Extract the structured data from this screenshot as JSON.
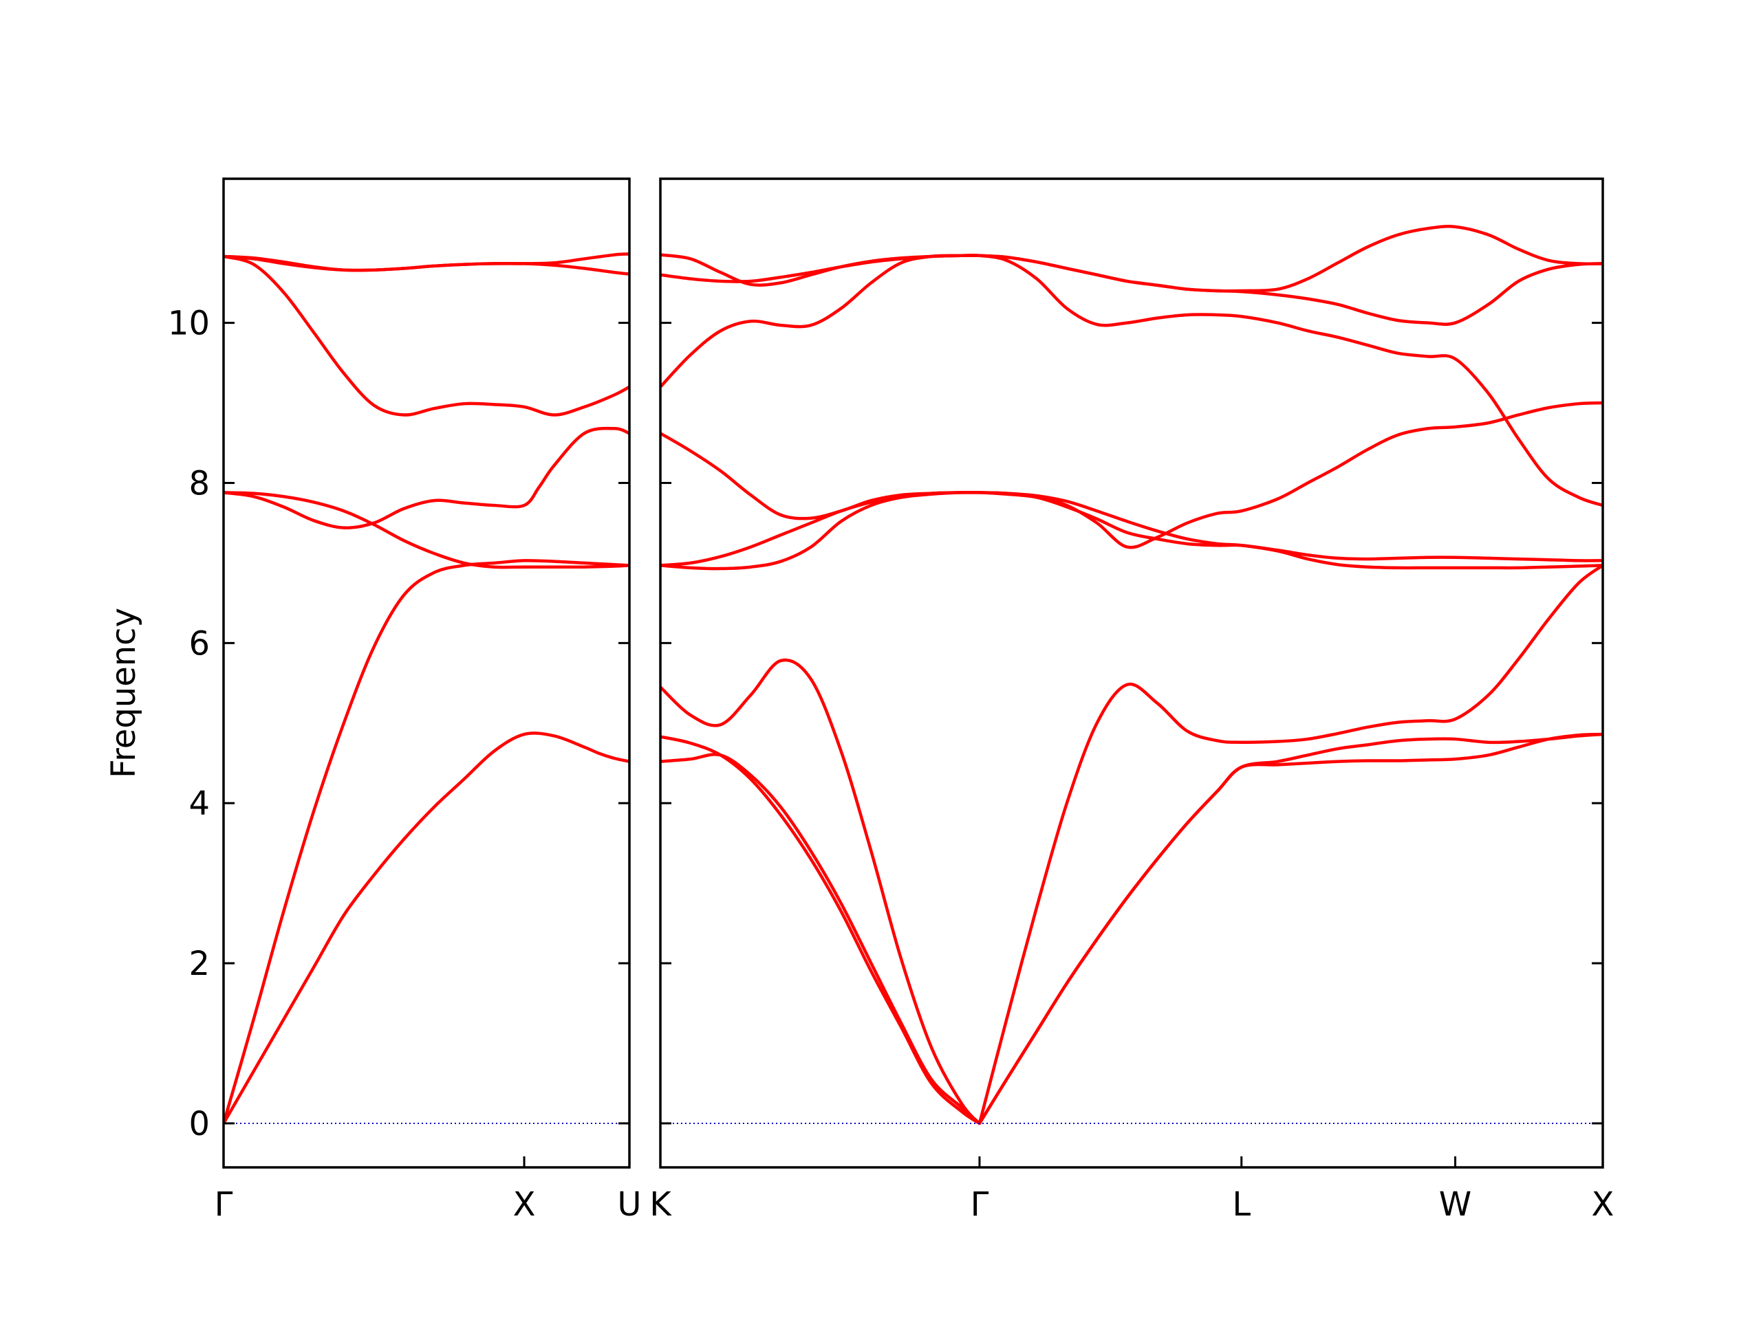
{
  "chart_data": {
    "type": "line",
    "ylabel": "Frequency",
    "ylim": [
      -0.55,
      11.8
    ],
    "yticks": [
      0,
      2,
      4,
      6,
      8,
      10
    ],
    "ytick_labels": [
      "0",
      "2",
      "4",
      "6",
      "8",
      "10"
    ],
    "grid": false,
    "legend": "none",
    "line_color": "#ff0000",
    "zero_line_color": "#0000cc",
    "panels": [
      {
        "name": "panel-gamma-x-u",
        "xlim": [
          0,
          1.35
        ],
        "xticks": [
          0,
          1.0,
          1.35
        ],
        "xtick_labels": [
          "Γ",
          "X",
          "U"
        ],
        "bands": [
          {
            "x": [
              0,
              0.1,
              0.2,
              0.3,
              0.4,
              0.5,
              0.6,
              0.7,
              0.8,
              0.9,
              1.0,
              1.1,
              1.2,
              1.25,
              1.3,
              1.35
            ],
            "y": [
              0,
              0.65,
              1.3,
              1.95,
              2.6,
              3.1,
              3.55,
              3.95,
              4.3,
              4.65,
              4.86,
              4.84,
              4.7,
              4.62,
              4.56,
              4.52
            ]
          },
          {
            "x": [
              0,
              0.1,
              0.2,
              0.3,
              0.4,
              0.5,
              0.6,
              0.7,
              0.8,
              0.9,
              1.0,
              1.1,
              1.2,
              1.3,
              1.35
            ],
            "y": [
              0,
              1.3,
              2.65,
              3.9,
              5.0,
              5.95,
              6.6,
              6.88,
              6.97,
              7.0,
              7.03,
              7.02,
              7.0,
              6.98,
              6.97
            ]
          },
          {
            "x": [
              0,
              0.1,
              0.2,
              0.3,
              0.4,
              0.5,
              0.6,
              0.7,
              0.8,
              0.9,
              1.0,
              1.1,
              1.2,
              1.3,
              1.35
            ],
            "y": [
              7.88,
              7.87,
              7.83,
              7.76,
              7.65,
              7.48,
              7.28,
              7.12,
              7.0,
              6.95,
              6.95,
              6.95,
              6.95,
              6.96,
              6.97
            ]
          },
          {
            "x": [
              0,
              0.1,
              0.2,
              0.3,
              0.4,
              0.5,
              0.6,
              0.7,
              0.8,
              0.9,
              1.0,
              1.05,
              1.1,
              1.2,
              1.3,
              1.35
            ],
            "y": [
              7.88,
              7.83,
              7.7,
              7.53,
              7.44,
              7.5,
              7.68,
              7.78,
              7.75,
              7.72,
              7.72,
              7.95,
              8.22,
              8.62,
              8.68,
              8.62
            ]
          },
          {
            "x": [
              0,
              0.1,
              0.2,
              0.3,
              0.4,
              0.5,
              0.6,
              0.7,
              0.8,
              0.9,
              1.0,
              1.1,
              1.2,
              1.3,
              1.35
            ],
            "y": [
              10.83,
              10.73,
              10.38,
              9.88,
              9.37,
              8.97,
              8.85,
              8.93,
              8.99,
              8.98,
              8.95,
              8.85,
              8.95,
              9.1,
              9.2
            ]
          },
          {
            "x": [
              0,
              0.1,
              0.2,
              0.3,
              0.4,
              0.5,
              0.6,
              0.7,
              0.8,
              0.9,
              1.0,
              1.1,
              1.2,
              1.3,
              1.35
            ],
            "y": [
              10.83,
              10.8,
              10.74,
              10.69,
              10.66,
              10.66,
              10.68,
              10.71,
              10.73,
              10.74,
              10.74,
              10.75,
              10.8,
              10.85,
              10.86
            ]
          },
          {
            "x": [
              0,
              0.1,
              0.2,
              0.3,
              0.4,
              0.5,
              0.6,
              0.7,
              0.8,
              0.9,
              1.0,
              1.1,
              1.2,
              1.3,
              1.35
            ],
            "y": [
              10.83,
              10.81,
              10.76,
              10.7,
              10.66,
              10.66,
              10.68,
              10.71,
              10.73,
              10.74,
              10.74,
              10.72,
              10.68,
              10.63,
              10.61
            ]
          },
          {
            "x": [
              0,
              0.1,
              0.2,
              0.3,
              0.4,
              0.5,
              0.6,
              0.7,
              0.8,
              0.9,
              1.0,
              1.1,
              1.2,
              1.3,
              1.35
            ],
            "y": [
              0,
              0,
              0,
              0,
              0,
              0,
              0,
              0,
              0,
              0,
              0,
              0,
              0,
              0,
              0
            ],
            "style": "zero-line"
          }
        ]
      },
      {
        "name": "panel-k-gamma-l-w-x",
        "xlim": [
          0,
          3.13
        ],
        "xticks": [
          0,
          1.06,
          1.93,
          2.64,
          3.13
        ],
        "xtick_labels": [
          "K",
          "Γ",
          "L",
          "W",
          "X"
        ],
        "bands": [
          {
            "x": [
              0,
              0.1,
              0.2,
              0.3,
              0.4,
              0.5,
              0.6,
              0.7,
              0.8,
              0.9,
              1.0,
              1.06,
              1.15,
              1.25,
              1.35,
              1.45,
              1.55,
              1.65,
              1.75,
              1.85,
              1.93,
              2.05,
              2.15,
              2.25,
              2.35,
              2.45,
              2.55,
              2.64,
              2.75,
              2.85,
              2.95,
              3.05,
              3.13
            ],
            "y": [
              4.52,
              4.55,
              4.6,
              4.35,
              3.95,
              3.4,
              2.75,
              2.0,
              1.25,
              0.55,
              0.2,
              0,
              0.55,
              1.15,
              1.75,
              2.3,
              2.82,
              3.3,
              3.75,
              4.15,
              4.45,
              4.48,
              4.5,
              4.52,
              4.53,
              4.53,
              4.54,
              4.55,
              4.6,
              4.7,
              4.8,
              4.85,
              4.86
            ]
          },
          {
            "x": [
              0,
              0.1,
              0.2,
              0.3,
              0.4,
              0.5,
              0.6,
              0.7,
              0.8,
              0.9,
              1.0,
              1.06,
              1.15,
              1.25,
              1.35,
              1.45,
              1.55,
              1.65,
              1.75,
              1.85,
              1.93,
              2.05,
              2.15,
              2.25,
              2.35,
              2.45,
              2.55,
              2.64,
              2.75,
              2.85,
              2.95,
              3.05,
              3.13
            ],
            "y": [
              4.83,
              4.75,
              4.6,
              4.3,
              3.85,
              3.3,
              2.65,
              1.9,
              1.2,
              0.5,
              0.15,
              0,
              0.55,
              1.15,
              1.75,
              2.3,
              2.82,
              3.3,
              3.75,
              4.15,
              4.45,
              4.52,
              4.6,
              4.68,
              4.73,
              4.78,
              4.8,
              4.8,
              4.76,
              4.77,
              4.8,
              4.84,
              4.86
            ]
          },
          {
            "x": [
              0,
              0.1,
              0.2,
              0.3,
              0.4,
              0.5,
              0.6,
              0.7,
              0.8,
              0.9,
              1.0,
              1.06,
              1.15,
              1.25,
              1.35,
              1.45,
              1.55,
              1.65,
              1.75,
              1.85,
              1.93,
              2.05,
              2.15,
              2.25,
              2.35,
              2.45,
              2.55,
              2.64,
              2.75,
              2.85,
              2.95,
              3.05,
              3.13
            ],
            "y": [
              5.45,
              5.1,
              4.98,
              5.35,
              5.78,
              5.55,
              4.65,
              3.4,
              2.05,
              0.95,
              0.25,
              0,
              1.3,
              2.7,
              4.0,
              5.0,
              5.48,
              5.25,
              4.9,
              4.78,
              4.76,
              4.77,
              4.8,
              4.87,
              4.95,
              5.01,
              5.03,
              5.05,
              5.35,
              5.8,
              6.3,
              6.75,
              6.97
            ]
          },
          {
            "x": [
              0,
              0.1,
              0.2,
              0.3,
              0.4,
              0.5,
              0.6,
              0.7,
              0.8,
              0.9,
              1.0,
              1.06,
              1.15,
              1.25,
              1.35,
              1.45,
              1.55,
              1.65,
              1.75,
              1.85,
              1.93,
              2.05,
              2.15,
              2.25,
              2.35,
              2.45,
              2.55,
              2.64,
              2.75,
              2.85,
              2.95,
              3.05,
              3.13
            ],
            "y": [
              6.97,
              6.94,
              6.93,
              6.95,
              7.02,
              7.2,
              7.52,
              7.72,
              7.82,
              7.86,
              7.88,
              7.88,
              7.86,
              7.82,
              7.7,
              7.55,
              7.38,
              7.3,
              7.24,
              7.22,
              7.22,
              7.16,
              7.1,
              7.06,
              7.05,
              7.06,
              7.07,
              7.07,
              7.06,
              7.05,
              7.04,
              7.03,
              7.03
            ]
          },
          {
            "x": [
              0,
              0.1,
              0.2,
              0.3,
              0.4,
              0.5,
              0.6,
              0.7,
              0.8,
              0.9,
              1.0,
              1.06,
              1.15,
              1.25,
              1.35,
              1.45,
              1.55,
              1.65,
              1.75,
              1.85,
              1.93,
              2.05,
              2.15,
              2.25,
              2.35,
              2.45,
              2.55,
              2.64,
              2.75,
              2.85,
              2.95,
              3.05,
              3.13
            ],
            "y": [
              6.97,
              7.0,
              7.08,
              7.2,
              7.35,
              7.5,
              7.65,
              7.76,
              7.83,
              7.87,
              7.88,
              7.88,
              7.87,
              7.83,
              7.72,
              7.5,
              7.2,
              7.32,
              7.5,
              7.62,
              7.65,
              7.8,
              8.0,
              8.2,
              8.42,
              8.6,
              8.68,
              8.7,
              8.75,
              8.85,
              8.94,
              8.99,
              9.0
            ]
          },
          {
            "x": [
              0,
              0.1,
              0.2,
              0.3,
              0.4,
              0.5,
              0.6,
              0.7,
              0.8,
              0.9,
              1.0,
              1.06,
              1.15,
              1.25,
              1.35,
              1.45,
              1.55,
              1.65,
              1.75,
              1.85,
              1.93,
              2.05,
              2.15,
              2.25,
              2.35,
              2.45,
              2.55,
              2.64,
              2.75,
              2.85,
              2.95,
              3.05,
              3.13
            ],
            "y": [
              8.62,
              8.4,
              8.15,
              7.85,
              7.6,
              7.56,
              7.65,
              7.78,
              7.85,
              7.87,
              7.88,
              7.88,
              7.87,
              7.84,
              7.77,
              7.65,
              7.52,
              7.4,
              7.3,
              7.24,
              7.22,
              7.15,
              7.05,
              6.98,
              6.95,
              6.94,
              6.94,
              6.94,
              6.94,
              6.94,
              6.95,
              6.96,
              6.97
            ]
          },
          {
            "x": [
              0,
              0.1,
              0.2,
              0.3,
              0.4,
              0.5,
              0.6,
              0.7,
              0.8,
              0.9,
              1.0,
              1.06,
              1.15,
              1.25,
              1.35,
              1.45,
              1.55,
              1.65,
              1.75,
              1.85,
              1.93,
              2.05,
              2.15,
              2.25,
              2.35,
              2.45,
              2.55,
              2.64,
              2.75,
              2.85,
              2.95,
              3.05,
              3.13
            ],
            "y": [
              9.2,
              9.6,
              9.9,
              10.02,
              9.97,
              9.97,
              10.18,
              10.5,
              10.75,
              10.83,
              10.84,
              10.84,
              10.78,
              10.55,
              10.18,
              9.98,
              10.0,
              10.06,
              10.1,
              10.1,
              10.08,
              10.0,
              9.9,
              9.82,
              9.72,
              9.62,
              9.58,
              9.55,
              9.12,
              8.55,
              8.05,
              7.82,
              7.72
            ]
          },
          {
            "x": [
              0,
              0.1,
              0.2,
              0.3,
              0.4,
              0.5,
              0.6,
              0.7,
              0.8,
              0.9,
              1.0,
              1.06,
              1.15,
              1.25,
              1.35,
              1.45,
              1.55,
              1.65,
              1.75,
              1.85,
              1.93,
              2.05,
              2.15,
              2.25,
              2.35,
              2.45,
              2.55,
              2.64,
              2.75,
              2.85,
              2.95,
              3.05,
              3.13
            ],
            "y": [
              10.6,
              10.55,
              10.52,
              10.52,
              10.57,
              10.63,
              10.7,
              10.76,
              10.8,
              10.83,
              10.84,
              10.84,
              10.82,
              10.76,
              10.68,
              10.6,
              10.52,
              10.47,
              10.42,
              10.4,
              10.39,
              10.35,
              10.3,
              10.23,
              10.12,
              10.03,
              10.0,
              10.0,
              10.23,
              10.52,
              10.67,
              10.73,
              10.74
            ]
          },
          {
            "x": [
              0,
              0.1,
              0.2,
              0.3,
              0.4,
              0.5,
              0.6,
              0.7,
              0.8,
              0.9,
              1.0,
              1.06,
              1.15,
              1.25,
              1.35,
              1.45,
              1.55,
              1.65,
              1.75,
              1.85,
              1.93,
              2.05,
              2.15,
              2.25,
              2.35,
              2.45,
              2.55,
              2.64,
              2.75,
              2.85,
              2.95,
              3.05,
              3.13
            ],
            "y": [
              10.85,
              10.8,
              10.63,
              10.48,
              10.5,
              10.6,
              10.7,
              10.77,
              10.81,
              10.83,
              10.84,
              10.84,
              10.82,
              10.76,
              10.68,
              10.6,
              10.52,
              10.47,
              10.42,
              10.4,
              10.4,
              10.42,
              10.55,
              10.75,
              10.95,
              11.1,
              11.18,
              11.2,
              11.1,
              10.92,
              10.78,
              10.74,
              10.74
            ]
          },
          {
            "x": [
              0,
              0.5,
              1.0,
              1.5,
              2.0,
              2.5,
              3.13
            ],
            "y": [
              0,
              0,
              0,
              0,
              0,
              0,
              0
            ],
            "style": "zero-line"
          }
        ]
      }
    ]
  }
}
